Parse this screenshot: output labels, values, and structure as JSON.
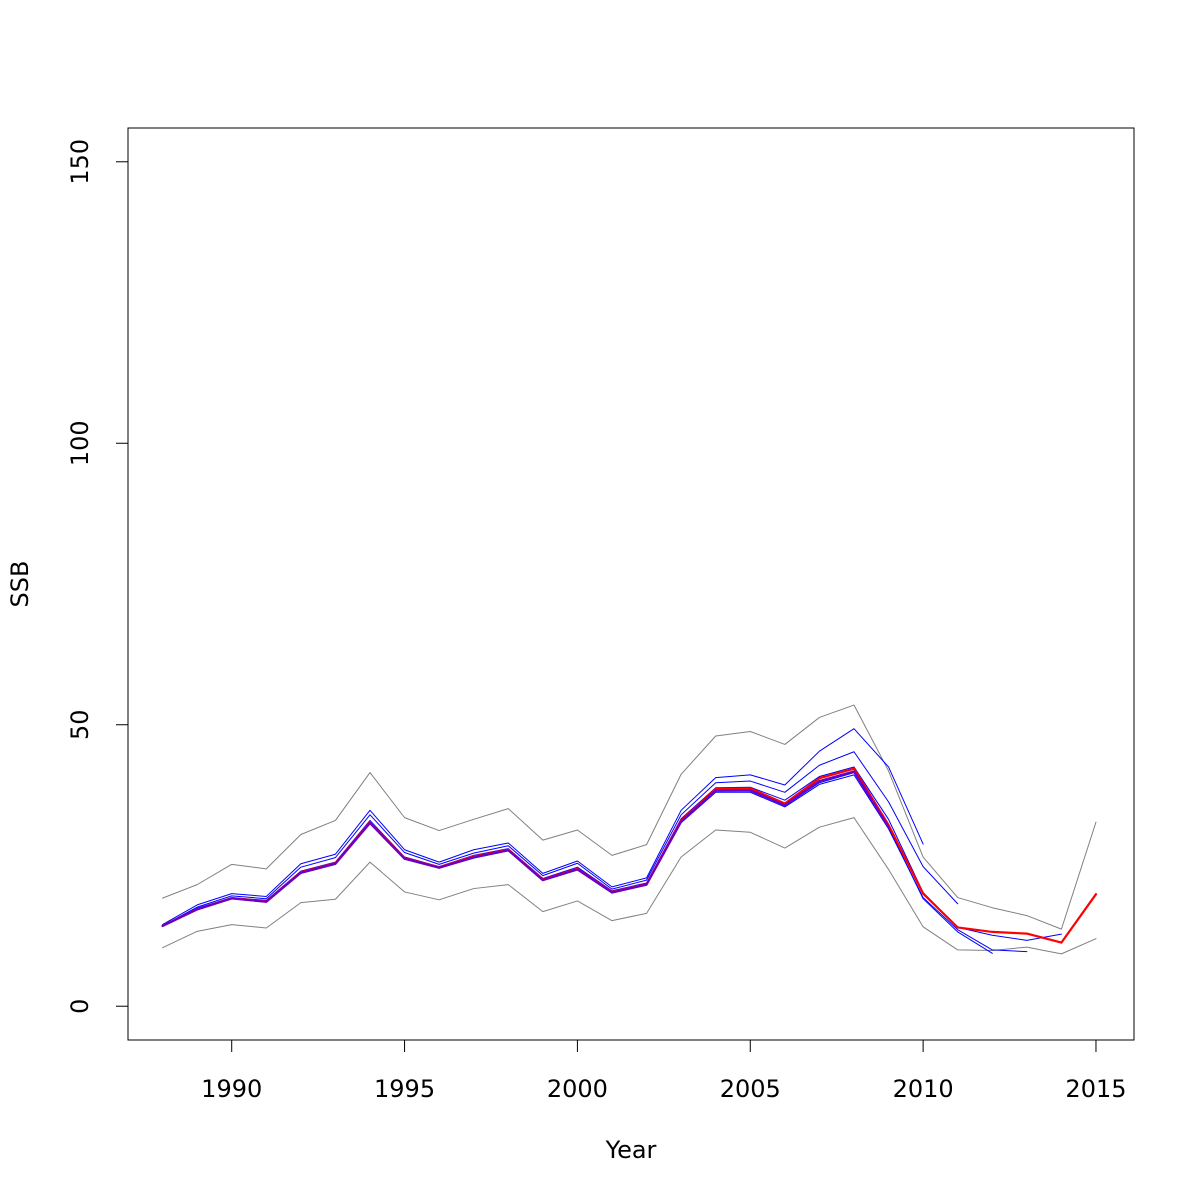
{
  "chart_data": {
    "type": "line",
    "title": "",
    "xlabel": "Year",
    "ylabel": "SSB",
    "xlim": [
      1987,
      2016.1
    ],
    "ylim": [
      -6,
      156
    ],
    "x_ticks": [
      1990,
      1995,
      2000,
      2005,
      2010,
      2015
    ],
    "y_ticks": [
      0,
      50,
      100,
      150
    ],
    "grid": false,
    "legend": "none",
    "series": [
      {
        "role": "upper-bound",
        "color": "#808080",
        "width": 1,
        "x": [
          1988,
          1989,
          1990,
          1991,
          1992,
          1993,
          1994,
          1995,
          1996,
          1997,
          1998,
          1999,
          2000,
          2001,
          2002,
          2003,
          2004,
          2005,
          2006,
          2007,
          2008,
          2009,
          2010,
          2011,
          2012,
          2013,
          2014,
          2015
        ],
        "y": [
          19.2,
          21.6,
          25.2,
          24.4,
          30.5,
          33.0,
          41.5,
          33.5,
          31.2,
          33.2,
          35.1,
          29.5,
          31.3,
          26.8,
          28.7,
          41.2,
          48.0,
          48.8,
          46.5,
          51.3,
          53.5,
          41.8,
          26.5,
          19.3,
          17.5,
          16.1,
          13.7,
          32.7
        ]
      },
      {
        "role": "lower-bound",
        "color": "#808080",
        "width": 1,
        "x": [
          1988,
          1989,
          1990,
          1991,
          1992,
          1993,
          1994,
          1995,
          1996,
          1997,
          1998,
          1999,
          2000,
          2001,
          2002,
          2003,
          2004,
          2005,
          2006,
          2007,
          2008,
          2009,
          2010,
          2011,
          2012,
          2013,
          2014,
          2015
        ],
        "y": [
          10.4,
          13.3,
          14.5,
          13.9,
          18.4,
          19.0,
          25.6,
          20.3,
          18.9,
          20.9,
          21.6,
          16.8,
          18.7,
          15.2,
          16.5,
          26.5,
          31.3,
          30.9,
          28.1,
          31.8,
          33.5,
          24.3,
          14.1,
          10.0,
          9.9,
          10.5,
          9.3,
          12.0
        ]
      },
      {
        "role": "retro-peel-1",
        "color": "#0000ff",
        "width": 1,
        "x": [
          1988,
          1989,
          1990,
          1991,
          1992,
          1993,
          1994,
          1995,
          1996,
          1997,
          1998,
          1999,
          2000,
          2001,
          2002,
          2003,
          2004,
          2005,
          2006,
          2007,
          2008,
          2009,
          2010
        ],
        "y": [
          14.5,
          18.0,
          20.0,
          19.5,
          25.3,
          27.0,
          34.8,
          27.8,
          25.6,
          27.8,
          29.0,
          23.6,
          25.8,
          21.2,
          22.8,
          34.8,
          40.6,
          41.1,
          39.3,
          45.3,
          49.3,
          42.5,
          28.8
        ]
      },
      {
        "role": "retro-peel-2",
        "color": "#0000ff",
        "width": 1,
        "x": [
          1988,
          1989,
          1990,
          1991,
          1992,
          1993,
          1994,
          1995,
          1996,
          1997,
          1998,
          1999,
          2000,
          2001,
          2002,
          2003,
          2004,
          2005,
          2006,
          2007,
          2008,
          2009,
          2010,
          2011
        ],
        "y": [
          14.3,
          17.6,
          19.6,
          19.1,
          24.7,
          26.4,
          34.0,
          27.3,
          25.2,
          27.2,
          28.5,
          23.2,
          25.4,
          20.8,
          22.4,
          34.0,
          39.7,
          40.0,
          38.0,
          42.8,
          45.2,
          36.3,
          24.8,
          18.2
        ]
      },
      {
        "role": "retro-peel-3",
        "color": "#0000ff",
        "width": 1,
        "x": [
          1988,
          1989,
          1990,
          1991,
          1992,
          1993,
          1994,
          1995,
          1996,
          1997,
          1998,
          1999,
          2000,
          2001,
          2002,
          2003,
          2004,
          2005,
          2006,
          2007,
          2008,
          2009,
          2010,
          2011,
          2012
        ],
        "y": [
          14.2,
          17.2,
          19.2,
          18.6,
          23.8,
          25.3,
          32.5,
          26.2,
          24.6,
          26.4,
          27.7,
          22.4,
          24.4,
          20.2,
          21.6,
          32.8,
          38.2,
          38.2,
          35.6,
          39.7,
          41.5,
          31.8,
          19.1,
          13.2,
          9.4
        ]
      },
      {
        "role": "retro-peel-4",
        "color": "#0000ff",
        "width": 1,
        "x": [
          1988,
          1989,
          1990,
          1991,
          1992,
          1993,
          1994,
          1995,
          1996,
          1997,
          1998,
          1999,
          2000,
          2001,
          2002,
          2003,
          2004,
          2005,
          2006,
          2007,
          2008,
          2009,
          2010,
          2011,
          2012,
          2013
        ],
        "y": [
          14.2,
          17.2,
          19.1,
          18.5,
          23.6,
          25.2,
          32.4,
          26.1,
          24.5,
          26.3,
          27.6,
          22.3,
          24.2,
          20.1,
          21.5,
          32.6,
          38.0,
          38.0,
          35.4,
          39.4,
          41.1,
          31.5,
          19.3,
          13.6,
          10.0,
          9.7
        ]
      },
      {
        "role": "retro-peel-5",
        "color": "#0000ff",
        "width": 1,
        "x": [
          1988,
          1989,
          1990,
          1991,
          1992,
          1993,
          1994,
          1995,
          1996,
          1997,
          1998,
          1999,
          2000,
          2001,
          2002,
          2003,
          2004,
          2005,
          2006,
          2007,
          2008,
          2009,
          2010,
          2011,
          2012,
          2013,
          2014
        ],
        "y": [
          14.3,
          17.4,
          19.3,
          18.8,
          24.0,
          25.6,
          33.0,
          26.5,
          24.8,
          26.8,
          28.0,
          22.7,
          24.7,
          20.5,
          21.9,
          33.3,
          38.8,
          38.9,
          36.6,
          40.8,
          42.5,
          33.2,
          20.2,
          14.0,
          12.6,
          11.7,
          12.8
        ]
      },
      {
        "role": "base-run",
        "color": "#ff0000",
        "width": 2.2,
        "x": [
          1988,
          1989,
          1990,
          1991,
          1992,
          1993,
          1994,
          1995,
          1996,
          1997,
          1998,
          1999,
          2000,
          2001,
          2002,
          2003,
          2004,
          2005,
          2006,
          2007,
          2008,
          2009,
          2010,
          2011,
          2012,
          2013,
          2014,
          2015
        ],
        "y": [
          14.3,
          17.2,
          19.2,
          18.6,
          23.8,
          25.4,
          32.7,
          26.3,
          24.7,
          26.6,
          27.8,
          22.5,
          24.4,
          20.3,
          21.7,
          33.0,
          38.6,
          38.7,
          36.0,
          40.5,
          42.2,
          32.2,
          20.0,
          14.0,
          13.2,
          12.9,
          11.3,
          19.9
        ]
      },
      {
        "role": "overlap-purple",
        "color": "#6a00c8",
        "width": 2.2,
        "x": [
          1988,
          1989,
          1990,
          1991,
          1992,
          1993,
          1994,
          1995,
          1996,
          1997,
          1998,
          1999,
          2000,
          2001,
          2002,
          2003,
          2004,
          2005,
          2006,
          2007,
          2008,
          2009
        ],
        "y": [
          14.25,
          17.2,
          19.15,
          18.55,
          23.7,
          25.3,
          32.55,
          26.2,
          24.6,
          26.45,
          27.7,
          22.4,
          24.3,
          20.2,
          21.6,
          32.8,
          38.3,
          38.35,
          35.7,
          40.0,
          41.7,
          31.8
        ]
      }
    ]
  }
}
